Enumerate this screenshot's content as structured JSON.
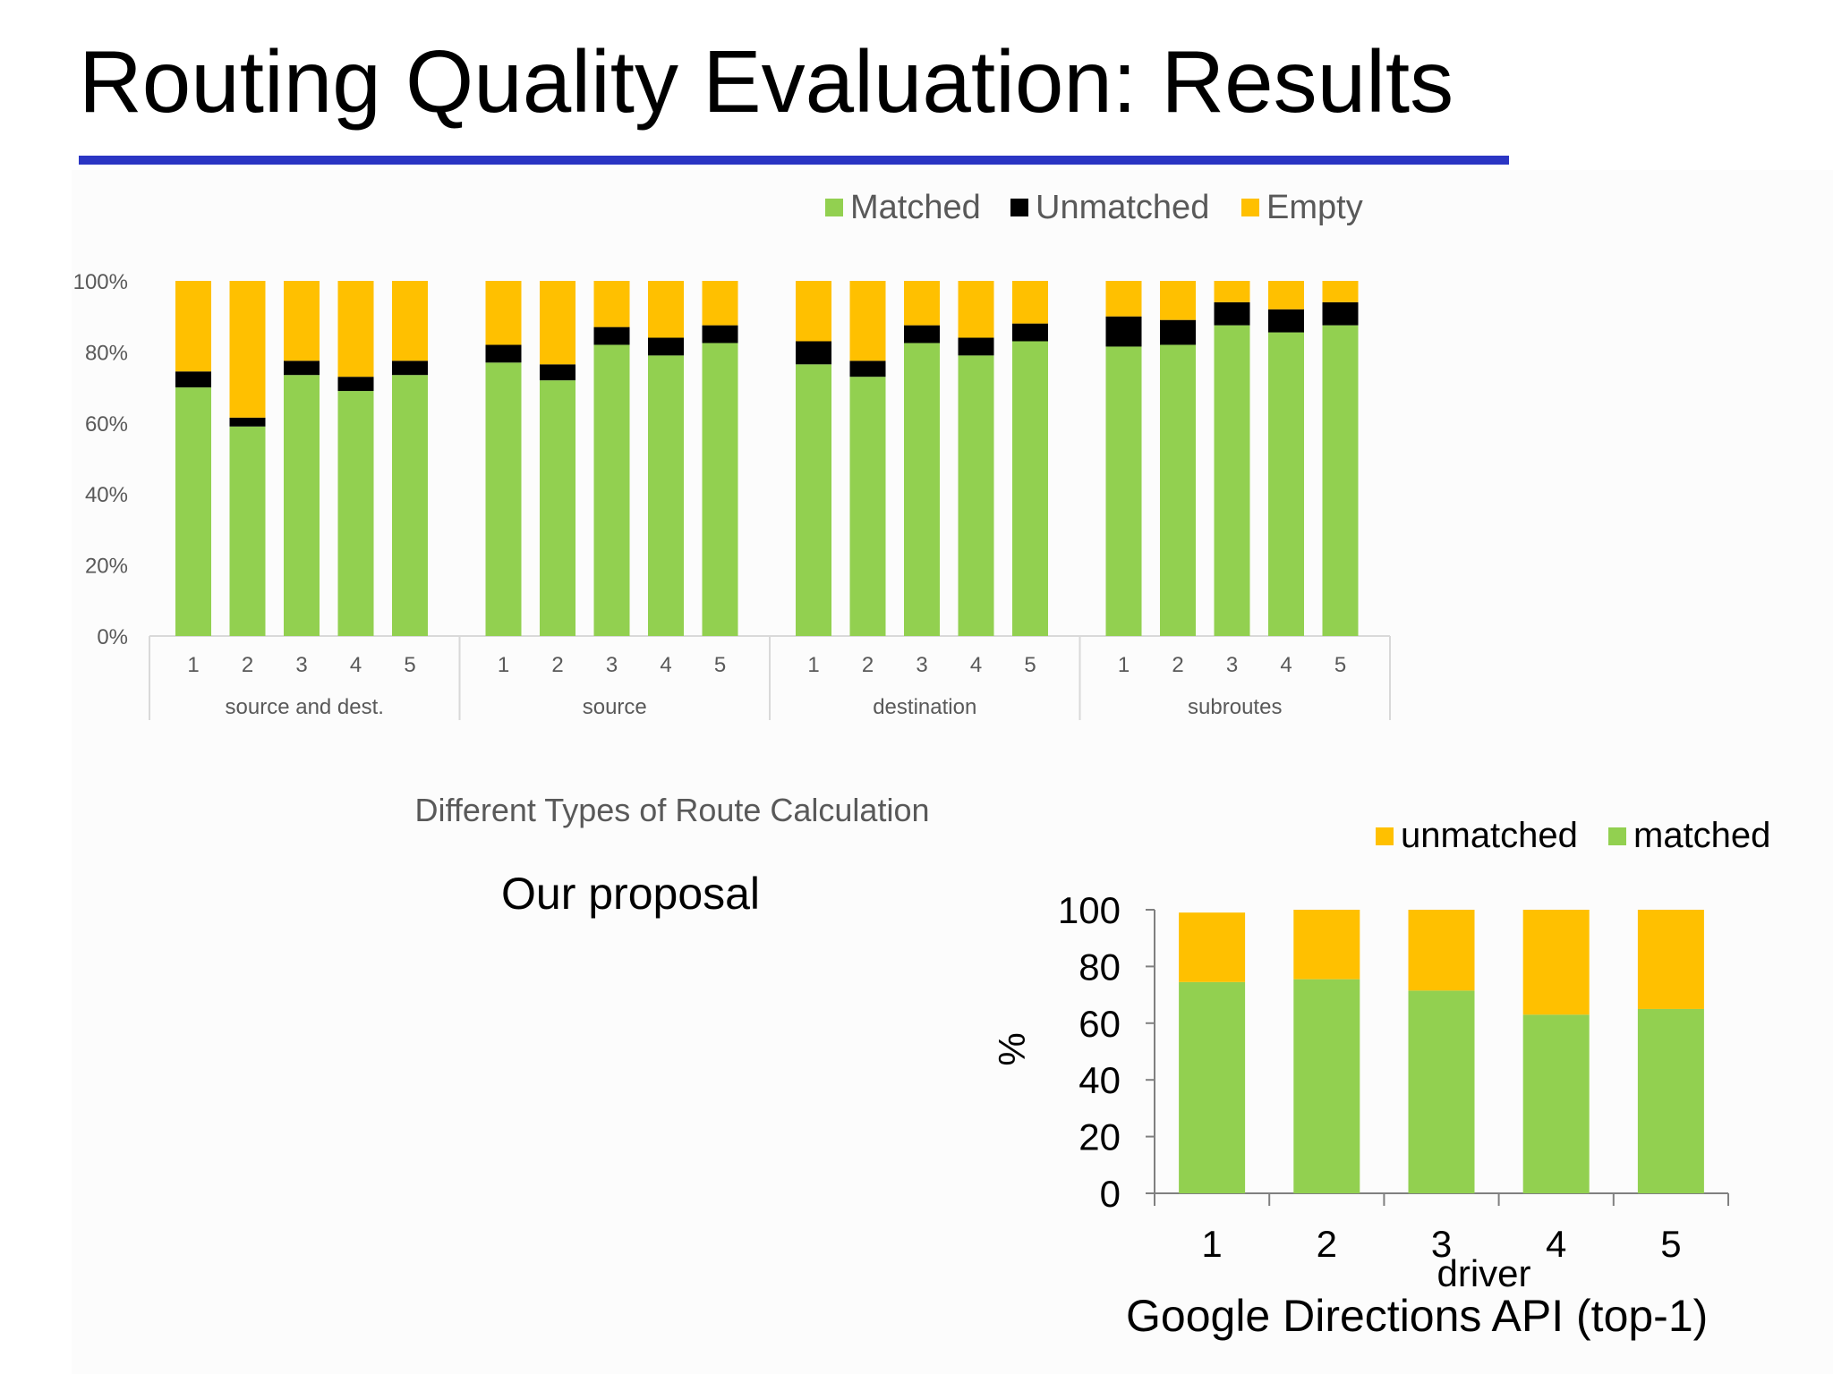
{
  "slide": {
    "title": "Routing Quality Evaluation: Results",
    "rule_color": "#2b36c4"
  },
  "labels": {
    "proposal": "Our proposal",
    "google": "Google Directions API (top-1)"
  },
  "chart_data": [
    {
      "type": "bar",
      "stacked": true,
      "title": "",
      "xlabel": "Different Types of Route Calculation",
      "ylabel": "",
      "ylim": [
        0,
        100
      ],
      "yticks": [
        "0%",
        "20%",
        "40%",
        "60%",
        "80%",
        "100%"
      ],
      "legend": {
        "placement": "top-right",
        "entries": [
          "Matched",
          "Unmatched",
          "Empty"
        ]
      },
      "grid": false,
      "groups": [
        "source and dest.",
        "source",
        "destination",
        "subroutes"
      ],
      "categories": [
        "1",
        "2",
        "3",
        "4",
        "5"
      ],
      "series": [
        {
          "name": "Matched",
          "color": "#92d050",
          "values": [
            [
              70,
              59,
              73.5,
              69,
              73.5
            ],
            [
              77,
              72,
              82,
              79,
              82.5
            ],
            [
              76.5,
              73,
              82.5,
              79,
              83
            ],
            [
              81.5,
              82,
              87.5,
              85.5,
              87.5
            ]
          ]
        },
        {
          "name": "Unmatched",
          "color": "#000000",
          "values": [
            [
              4.5,
              2.5,
              4,
              4,
              4
            ],
            [
              5,
              4.5,
              5,
              5,
              5
            ],
            [
              6.5,
              4.5,
              5,
              5,
              5
            ],
            [
              8.5,
              7,
              6.5,
              6.5,
              6.5
            ]
          ]
        },
        {
          "name": "Empty",
          "color": "#ffc000",
          "values": [
            [
              25.5,
              38.5,
              22.5,
              27,
              22.5
            ],
            [
              18,
              23.5,
              13,
              16,
              12.5
            ],
            [
              17,
              22.5,
              12.5,
              16,
              12
            ],
            [
              10,
              11,
              6,
              8,
              6
            ]
          ]
        }
      ]
    },
    {
      "type": "bar",
      "stacked": true,
      "title": "",
      "xlabel": "driver",
      "ylabel": "%",
      "ylim": [
        0,
        100
      ],
      "yticks": [
        "0",
        "20",
        "40",
        "60",
        "80",
        "100"
      ],
      "legend": {
        "placement": "top-right",
        "entries": [
          "unmatched",
          "matched"
        ]
      },
      "grid": false,
      "categories": [
        "1",
        "2",
        "3",
        "4",
        "5"
      ],
      "series": [
        {
          "name": "matched",
          "color": "#92d050",
          "values": [
            74.5,
            75.5,
            71.5,
            63,
            65
          ]
        },
        {
          "name": "unmatched",
          "color": "#ffc000",
          "values": [
            24.5,
            24.5,
            28.5,
            37,
            35
          ]
        }
      ]
    }
  ]
}
